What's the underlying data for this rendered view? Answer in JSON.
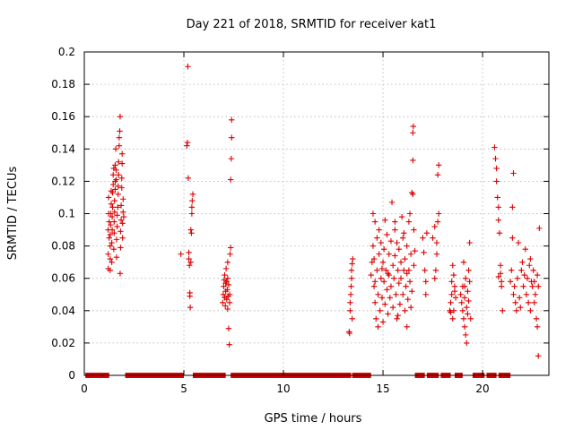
{
  "chart_data": {
    "type": "scatter",
    "title": "Day 221 of 2018, SRMTID for receiver kat1",
    "xlabel": "GPS time / hours",
    "ylabel": "SRMTID / TECUs",
    "xlim": [
      0,
      23.33
    ],
    "ylim": [
      0,
      0.2
    ],
    "xticks": [
      0,
      5,
      10,
      15,
      20
    ],
    "yticks": [
      0,
      0.02,
      0.04,
      0.06,
      0.08,
      0.1,
      0.12,
      0.14,
      0.16,
      0.18,
      0.2
    ],
    "ytick_labels": [
      "0",
      "0.02",
      "0.04",
      "0.06",
      "0.08",
      "0.1",
      "0.12",
      "0.14",
      "0.16",
      "0.18",
      "0.2"
    ],
    "grid": true,
    "marker": "+",
    "color": "#dd0000",
    "zero_segments": [
      [
        0.05,
        1.25
      ],
      [
        2.05,
        5.0
      ],
      [
        5.45,
        7.1
      ],
      [
        7.35,
        13.4
      ],
      [
        13.45,
        14.4
      ],
      [
        16.6,
        17.1
      ],
      [
        17.2,
        17.8
      ],
      [
        17.9,
        18.4
      ],
      [
        18.6,
        19.0
      ],
      [
        19.5,
        20.1
      ],
      [
        20.2,
        20.7
      ],
      [
        20.8,
        21.4
      ]
    ],
    "points": [
      [
        1.2,
        0.066
      ],
      [
        1.2,
        0.075
      ],
      [
        1.2,
        0.09
      ],
      [
        1.22,
        0.1
      ],
      [
        1.22,
        0.11
      ],
      [
        1.25,
        0.085
      ],
      [
        1.25,
        0.095
      ],
      [
        1.3,
        0.065
      ],
      [
        1.3,
        0.072
      ],
      [
        1.3,
        0.08
      ],
      [
        1.3,
        0.087
      ],
      [
        1.32,
        0.093
      ],
      [
        1.32,
        0.1
      ],
      [
        1.35,
        0.106
      ],
      [
        1.35,
        0.114
      ],
      [
        1.38,
        0.07
      ],
      [
        1.38,
        0.082
      ],
      [
        1.4,
        0.09
      ],
      [
        1.4,
        0.098
      ],
      [
        1.42,
        0.104
      ],
      [
        1.42,
        0.113
      ],
      [
        1.45,
        0.118
      ],
      [
        1.45,
        0.124
      ],
      [
        1.48,
        0.128
      ],
      [
        1.48,
        0.078
      ],
      [
        1.5,
        0.088
      ],
      [
        1.5,
        0.095
      ],
      [
        1.52,
        0.101
      ],
      [
        1.52,
        0.108
      ],
      [
        1.55,
        0.115
      ],
      [
        1.55,
        0.12
      ],
      [
        1.55,
        0.13
      ],
      [
        1.58,
        0.14
      ],
      [
        1.6,
        0.127
      ],
      [
        1.6,
        0.121
      ],
      [
        1.62,
        0.073
      ],
      [
        1.62,
        0.084
      ],
      [
        1.65,
        0.092
      ],
      [
        1.65,
        0.099
      ],
      [
        1.68,
        0.104
      ],
      [
        1.7,
        0.112
      ],
      [
        1.7,
        0.117
      ],
      [
        1.72,
        0.124
      ],
      [
        1.72,
        0.132
      ],
      [
        1.75,
        0.142
      ],
      [
        1.75,
        0.147
      ],
      [
        1.78,
        0.151
      ],
      [
        1.8,
        0.16
      ],
      [
        1.8,
        0.063
      ],
      [
        1.82,
        0.079
      ],
      [
        1.82,
        0.089
      ],
      [
        1.85,
        0.096
      ],
      [
        1.85,
        0.105
      ],
      [
        1.88,
        0.116
      ],
      [
        1.88,
        0.122
      ],
      [
        1.9,
        0.131
      ],
      [
        1.9,
        0.137
      ],
      [
        1.92,
        0.085
      ],
      [
        1.92,
        0.094
      ],
      [
        1.95,
        0.101
      ],
      [
        1.95,
        0.109
      ],
      [
        1.98,
        0.098
      ],
      [
        4.85,
        0.075
      ],
      [
        5.15,
        0.142
      ],
      [
        5.18,
        0.144
      ],
      [
        5.2,
        0.191
      ],
      [
        5.22,
        0.122
      ],
      [
        5.25,
        0.076
      ],
      [
        5.25,
        0.072
      ],
      [
        5.28,
        0.068
      ],
      [
        5.3,
        0.051
      ],
      [
        5.3,
        0.049
      ],
      [
        5.32,
        0.042
      ],
      [
        5.35,
        0.09
      ],
      [
        5.38,
        0.088
      ],
      [
        5.4,
        0.1
      ],
      [
        5.4,
        0.104
      ],
      [
        5.42,
        0.108
      ],
      [
        5.45,
        0.112
      ],
      [
        5.35,
        0.07
      ],
      [
        6.95,
        0.045
      ],
      [
        6.98,
        0.05
      ],
      [
        7.0,
        0.055
      ],
      [
        7.02,
        0.059
      ],
      [
        7.05,
        0.062
      ],
      [
        7.05,
        0.048
      ],
      [
        7.08,
        0.043
      ],
      [
        7.1,
        0.052
      ],
      [
        7.1,
        0.057
      ],
      [
        7.12,
        0.066
      ],
      [
        7.15,
        0.058
      ],
      [
        7.15,
        0.047
      ],
      [
        7.18,
        0.053
      ],
      [
        7.2,
        0.041
      ],
      [
        7.2,
        0.06
      ],
      [
        7.22,
        0.049
      ],
      [
        7.25,
        0.056
      ],
      [
        7.25,
        0.029
      ],
      [
        7.28,
        0.019
      ],
      [
        7.3,
        0.05
      ],
      [
        7.3,
        0.045
      ],
      [
        7.32,
        0.075
      ],
      [
        7.35,
        0.079
      ],
      [
        7.35,
        0.121
      ],
      [
        7.38,
        0.134
      ],
      [
        7.4,
        0.147
      ],
      [
        7.4,
        0.158
      ],
      [
        7.2,
        0.07
      ],
      [
        13.3,
        0.027
      ],
      [
        13.32,
        0.026
      ],
      [
        13.35,
        0.04
      ],
      [
        13.35,
        0.045
      ],
      [
        13.38,
        0.05
      ],
      [
        13.4,
        0.055
      ],
      [
        13.42,
        0.06
      ],
      [
        13.42,
        0.065
      ],
      [
        13.45,
        0.069
      ],
      [
        13.48,
        0.072
      ],
      [
        13.45,
        0.035
      ],
      [
        14.4,
        0.062
      ],
      [
        14.45,
        0.07
      ],
      [
        14.5,
        0.08
      ],
      [
        14.5,
        0.1
      ],
      [
        14.55,
        0.055
      ],
      [
        14.6,
        0.045
      ],
      [
        14.6,
        0.095
      ],
      [
        14.65,
        0.035
      ],
      [
        14.7,
        0.085
      ],
      [
        14.7,
        0.065
      ],
      [
        14.75,
        0.05
      ],
      [
        14.75,
        0.03
      ],
      [
        14.8,
        0.075
      ],
      [
        14.8,
        0.09
      ],
      [
        14.85,
        0.04
      ],
      [
        14.9,
        0.06
      ],
      [
        14.9,
        0.082
      ],
      [
        14.95,
        0.048
      ],
      [
        15.0,
        0.07
      ],
      [
        15.0,
        0.033
      ],
      [
        15.05,
        0.058
      ],
      [
        15.05,
        0.078
      ],
      [
        15.1,
        0.044
      ],
      [
        15.1,
        0.096
      ],
      [
        15.15,
        0.065
      ],
      [
        15.2,
        0.053
      ],
      [
        15.2,
        0.087
      ],
      [
        15.25,
        0.038
      ],
      [
        15.3,
        0.075
      ],
      [
        15.3,
        0.062
      ],
      [
        15.35,
        0.048
      ],
      [
        15.4,
        0.083
      ],
      [
        15.4,
        0.055
      ],
      [
        15.45,
        0.107
      ],
      [
        15.5,
        0.068
      ],
      [
        15.5,
        0.042
      ],
      [
        15.55,
        0.06
      ],
      [
        15.6,
        0.074
      ],
      [
        15.6,
        0.09
      ],
      [
        15.65,
        0.05
      ],
      [
        15.7,
        0.082
      ],
      [
        15.7,
        0.035
      ],
      [
        15.75,
        0.065
      ],
      [
        15.8,
        0.057
      ],
      [
        15.8,
        0.078
      ],
      [
        15.85,
        0.044
      ],
      [
        15.9,
        0.07
      ],
      [
        15.9,
        0.06
      ],
      [
        15.95,
        0.098
      ],
      [
        16.0,
        0.05
      ],
      [
        16.0,
        0.085
      ],
      [
        16.05,
        0.065
      ],
      [
        16.1,
        0.04
      ],
      [
        16.1,
        0.072
      ],
      [
        16.15,
        0.055
      ],
      [
        16.2,
        0.08
      ],
      [
        16.2,
        0.03
      ],
      [
        16.25,
        0.047
      ],
      [
        16.3,
        0.065
      ],
      [
        16.3,
        0.095
      ],
      [
        16.35,
        0.1
      ],
      [
        16.35,
        0.058
      ],
      [
        16.4,
        0.075
      ],
      [
        16.4,
        0.042
      ],
      [
        16.45,
        0.052
      ],
      [
        16.45,
        0.113
      ],
      [
        16.5,
        0.112
      ],
      [
        16.5,
        0.133
      ],
      [
        16.5,
        0.15
      ],
      [
        16.52,
        0.154
      ],
      [
        16.55,
        0.09
      ],
      [
        16.55,
        0.068
      ],
      [
        16.6,
        0.077
      ],
      [
        16.2,
        0.063
      ],
      [
        15.6,
        0.095
      ],
      [
        15.25,
        0.063
      ],
      [
        14.55,
        0.072
      ],
      [
        14.95,
        0.066
      ],
      [
        15.75,
        0.037
      ],
      [
        16.05,
        0.088
      ],
      [
        14.6,
        0.058
      ],
      [
        17.0,
        0.085
      ],
      [
        17.05,
        0.076
      ],
      [
        17.1,
        0.065
      ],
      [
        17.15,
        0.058
      ],
      [
        17.15,
        0.05
      ],
      [
        17.2,
        0.088
      ],
      [
        17.5,
        0.085
      ],
      [
        17.6,
        0.06
      ],
      [
        17.65,
        0.065
      ],
      [
        17.7,
        0.075
      ],
      [
        17.7,
        0.082
      ],
      [
        17.75,
        0.095
      ],
      [
        17.8,
        0.1
      ],
      [
        17.75,
        0.124
      ],
      [
        17.8,
        0.13
      ],
      [
        17.6,
        0.092
      ],
      [
        18.35,
        0.04
      ],
      [
        18.4,
        0.045
      ],
      [
        18.45,
        0.05
      ],
      [
        18.45,
        0.058
      ],
      [
        18.5,
        0.068
      ],
      [
        18.5,
        0.035
      ],
      [
        18.55,
        0.04
      ],
      [
        18.55,
        0.062
      ],
      [
        18.6,
        0.055
      ],
      [
        18.6,
        0.052
      ],
      [
        18.65,
        0.048
      ],
      [
        18.4,
        0.039
      ],
      [
        18.9,
        0.05
      ],
      [
        18.95,
        0.045
      ],
      [
        19.0,
        0.04
      ],
      [
        19.0,
        0.055
      ],
      [
        19.05,
        0.035
      ],
      [
        19.05,
        0.07
      ],
      [
        19.1,
        0.03
      ],
      [
        19.1,
        0.048
      ],
      [
        19.15,
        0.025
      ],
      [
        19.15,
        0.06
      ],
      [
        19.2,
        0.02
      ],
      [
        19.2,
        0.042
      ],
      [
        19.25,
        0.038
      ],
      [
        19.25,
        0.052
      ],
      [
        19.3,
        0.046
      ],
      [
        19.3,
        0.065
      ],
      [
        19.35,
        0.058
      ],
      [
        19.35,
        0.082
      ],
      [
        19.4,
        0.035
      ],
      [
        19.1,
        0.055
      ],
      [
        20.6,
        0.141
      ],
      [
        20.65,
        0.134
      ],
      [
        20.7,
        0.128
      ],
      [
        20.7,
        0.12
      ],
      [
        20.75,
        0.11
      ],
      [
        20.8,
        0.104
      ],
      [
        20.8,
        0.096
      ],
      [
        20.85,
        0.088
      ],
      [
        20.9,
        0.068
      ],
      [
        20.9,
        0.063
      ],
      [
        20.95,
        0.058
      ],
      [
        20.95,
        0.055
      ],
      [
        21.0,
        0.04
      ],
      [
        20.8,
        0.061
      ],
      [
        21.4,
        0.058
      ],
      [
        21.45,
        0.065
      ],
      [
        21.5,
        0.085
      ],
      [
        21.5,
        0.104
      ],
      [
        21.55,
        0.125
      ],
      [
        21.55,
        0.05
      ],
      [
        21.6,
        0.055
      ],
      [
        21.65,
        0.045
      ],
      [
        21.7,
        0.04
      ],
      [
        21.75,
        0.06
      ],
      [
        21.8,
        0.082
      ],
      [
        21.85,
        0.048
      ],
      [
        21.9,
        0.042
      ],
      [
        21.95,
        0.065
      ],
      [
        22.0,
        0.07
      ],
      [
        22.05,
        0.055
      ],
      [
        22.1,
        0.062
      ],
      [
        22.15,
        0.078
      ],
      [
        22.2,
        0.05
      ],
      [
        22.25,
        0.06
      ],
      [
        22.3,
        0.045
      ],
      [
        22.35,
        0.068
      ],
      [
        22.4,
        0.04
      ],
      [
        22.45,
        0.058
      ],
      [
        22.5,
        0.055
      ],
      [
        22.55,
        0.065
      ],
      [
        22.6,
        0.045
      ],
      [
        22.65,
        0.05
      ],
      [
        22.7,
        0.035
      ],
      [
        22.75,
        0.062
      ],
      [
        22.75,
        0.03
      ],
      [
        22.8,
        0.012
      ],
      [
        22.85,
        0.091
      ],
      [
        22.8,
        0.055
      ],
      [
        22.6,
        0.058
      ],
      [
        22.4,
        0.072
      ]
    ]
  }
}
